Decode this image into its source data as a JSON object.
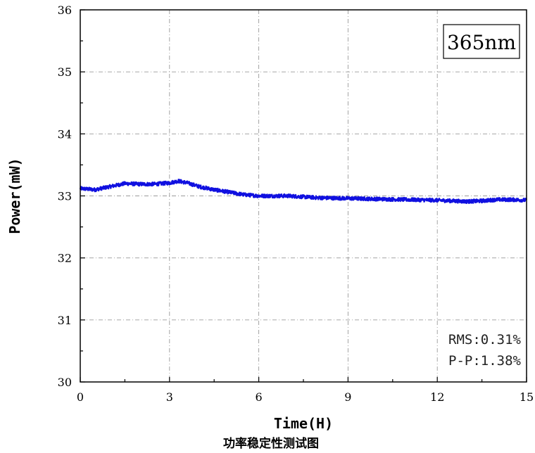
{
  "chart_data": {
    "type": "line",
    "xlabel": "Time(H)",
    "ylabel": "Power(mW)",
    "xlim": [
      0,
      15
    ],
    "ylim": [
      30,
      36
    ],
    "xticks": [
      0,
      3,
      6,
      9,
      12,
      15
    ],
    "yticks": [
      30,
      31,
      32,
      33,
      34,
      35,
      36
    ],
    "grid": true,
    "legend_label": "365nm",
    "legend_position": "top-right",
    "stats": [
      "RMS:0.31%",
      "P-P:1.38%"
    ],
    "caption": "功率稳定性测试图",
    "series": [
      {
        "color": "#1010e0",
        "noise": 0.03,
        "x": [
          0,
          0.5,
          1.0,
          1.5,
          2.0,
          2.5,
          3.0,
          3.3,
          3.6,
          4.0,
          4.5,
          5.0,
          5.5,
          6.0,
          6.5,
          7.0,
          8.0,
          9.0,
          10.0,
          11.0,
          12.0,
          12.5,
          13.0,
          13.5,
          14.0,
          14.5,
          15.0
        ],
        "y": [
          33.12,
          33.1,
          33.15,
          33.2,
          33.19,
          33.19,
          33.21,
          33.24,
          33.21,
          33.15,
          33.1,
          33.06,
          33.02,
          33.0,
          33.0,
          33.0,
          32.97,
          32.96,
          32.95,
          32.94,
          32.93,
          32.92,
          32.91,
          32.92,
          32.94,
          32.94,
          32.93
        ]
      }
    ]
  }
}
